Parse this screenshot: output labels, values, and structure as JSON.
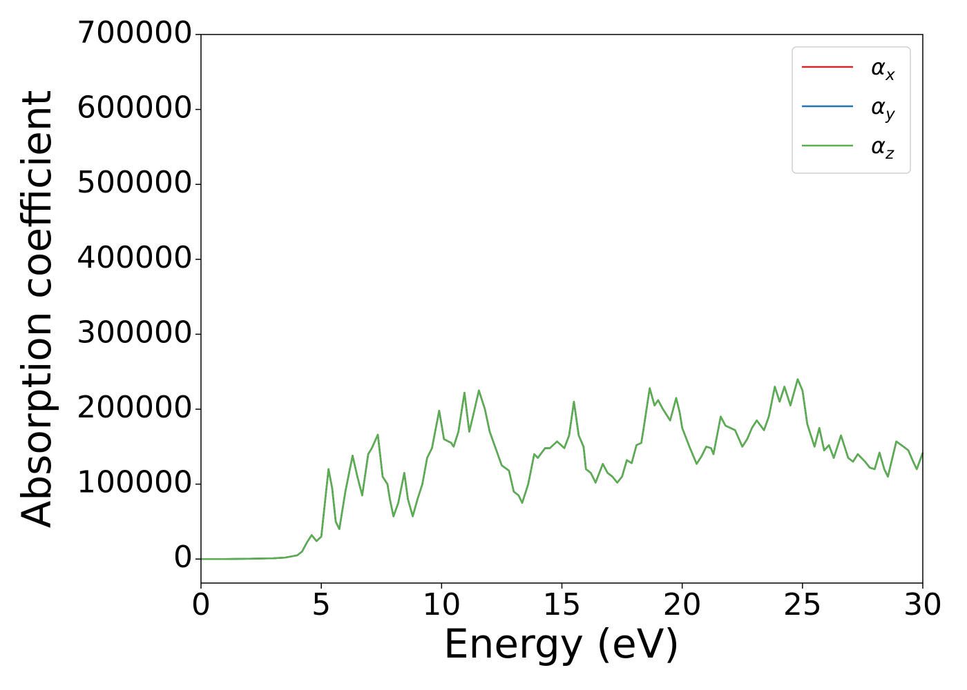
{
  "chart_data": {
    "type": "line",
    "xlabel": "Energy (eV)",
    "ylabel": "Absorption coefficient",
    "xlim": [
      0,
      30
    ],
    "ylim": [
      -32000,
      700000
    ],
    "xticks": [
      0,
      5,
      10,
      15,
      20,
      25,
      30
    ],
    "yticks": [
      0,
      100000,
      200000,
      300000,
      400000,
      500000,
      600000,
      700000
    ],
    "legend": "upper right",
    "x": [
      0,
      1,
      2,
      3,
      3.5,
      4,
      4.2,
      4.4,
      4.6,
      4.8,
      5.0,
      5.2,
      5.3,
      5.45,
      5.6,
      5.75,
      6.0,
      6.3,
      6.5,
      6.7,
      6.95,
      7.1,
      7.35,
      7.55,
      7.75,
      7.85,
      8.0,
      8.2,
      8.45,
      8.6,
      8.8,
      9.0,
      9.2,
      9.4,
      9.6,
      9.9,
      10.1,
      10.4,
      10.5,
      10.7,
      10.95,
      11.15,
      11.3,
      11.55,
      11.8,
      12.0,
      12.5,
      12.8,
      13.0,
      13.2,
      13.35,
      13.6,
      13.85,
      14.0,
      14.3,
      14.5,
      14.8,
      15.1,
      15.3,
      15.5,
      15.7,
      15.9,
      16.0,
      16.2,
      16.4,
      16.7,
      16.9,
      17.1,
      17.3,
      17.5,
      17.7,
      17.9,
      18.1,
      18.3,
      18.4,
      18.65,
      18.85,
      19.0,
      19.2,
      19.5,
      19.75,
      19.9,
      20.0,
      20.3,
      20.6,
      20.8,
      21.0,
      21.2,
      21.3,
      21.6,
      21.8,
      22.2,
      22.5,
      22.7,
      22.9,
      23.1,
      23.4,
      23.6,
      23.85,
      24.05,
      24.25,
      24.5,
      24.8,
      25.0,
      25.2,
      25.5,
      25.7,
      25.9,
      26.1,
      26.3,
      26.6,
      26.9,
      27.1,
      27.3,
      27.6,
      27.8,
      28.0,
      28.2,
      28.4,
      28.55,
      28.9,
      29.2,
      29.4,
      29.6,
      29.75,
      30
    ],
    "series": [
      {
        "name": "αx",
        "color": "#d62728",
        "values": [
          0,
          0,
          500,
          1000,
          2000,
          5000,
          10000,
          22000,
          32000,
          24000,
          30000,
          90000,
          120000,
          95000,
          50000,
          40000,
          90000,
          138000,
          110000,
          85000,
          140000,
          148000,
          166000,
          110000,
          100000,
          80000,
          57000,
          75000,
          115000,
          80000,
          57000,
          80000,
          100000,
          135000,
          148000,
          198000,
          160000,
          155000,
          150000,
          170000,
          222000,
          170000,
          190000,
          225000,
          200000,
          170000,
          125000,
          118000,
          90000,
          85000,
          75000,
          100000,
          140000,
          135000,
          148000,
          148000,
          157000,
          148000,
          165000,
          210000,
          165000,
          150000,
          120000,
          115000,
          102000,
          127000,
          115000,
          110000,
          102000,
          110000,
          132000,
          128000,
          152000,
          155000,
          175000,
          228000,
          205000,
          212000,
          200000,
          185000,
          215000,
          195000,
          175000,
          150000,
          127000,
          137000,
          150000,
          148000,
          140000,
          190000,
          178000,
          172000,
          150000,
          160000,
          175000,
          185000,
          172000,
          190000,
          230000,
          210000,
          230000,
          205000,
          240000,
          225000,
          180000,
          150000,
          175000,
          145000,
          152000,
          135000,
          165000,
          135000,
          130000,
          140000,
          130000,
          122000,
          120000,
          142000,
          120000,
          110000,
          157000,
          150000,
          145000,
          130000,
          120000,
          142000
        ]
      },
      {
        "name": "αy",
        "color": "#1f77b4",
        "values": [
          0,
          0,
          500,
          1000,
          2000,
          5000,
          10000,
          22000,
          32000,
          24000,
          30000,
          90000,
          120000,
          95000,
          50000,
          40000,
          90000,
          138000,
          110000,
          85000,
          140000,
          148000,
          166000,
          110000,
          100000,
          80000,
          57000,
          75000,
          115000,
          80000,
          57000,
          80000,
          100000,
          135000,
          148000,
          198000,
          160000,
          155000,
          150000,
          170000,
          222000,
          170000,
          190000,
          225000,
          200000,
          170000,
          125000,
          118000,
          90000,
          85000,
          75000,
          100000,
          140000,
          135000,
          148000,
          148000,
          157000,
          148000,
          165000,
          210000,
          165000,
          150000,
          120000,
          115000,
          102000,
          127000,
          115000,
          110000,
          102000,
          110000,
          132000,
          128000,
          152000,
          155000,
          175000,
          228000,
          205000,
          212000,
          200000,
          185000,
          215000,
          195000,
          175000,
          150000,
          127000,
          137000,
          150000,
          148000,
          140000,
          190000,
          178000,
          172000,
          150000,
          160000,
          175000,
          185000,
          172000,
          190000,
          230000,
          210000,
          230000,
          205000,
          240000,
          225000,
          180000,
          150000,
          175000,
          145000,
          152000,
          135000,
          165000,
          135000,
          130000,
          140000,
          130000,
          122000,
          120000,
          142000,
          120000,
          110000,
          157000,
          150000,
          145000,
          130000,
          120000,
          142000
        ]
      },
      {
        "name": "αz",
        "color": "#5aae4f",
        "values": [
          0,
          0,
          500,
          1000,
          2000,
          5000,
          10000,
          22000,
          32000,
          24000,
          30000,
          90000,
          120000,
          95000,
          50000,
          40000,
          90000,
          138000,
          110000,
          85000,
          140000,
          148000,
          166000,
          110000,
          100000,
          80000,
          57000,
          75000,
          115000,
          80000,
          57000,
          80000,
          100000,
          135000,
          148000,
          198000,
          160000,
          155000,
          150000,
          170000,
          222000,
          170000,
          190000,
          225000,
          200000,
          170000,
          125000,
          118000,
          90000,
          85000,
          75000,
          100000,
          140000,
          135000,
          148000,
          148000,
          157000,
          148000,
          165000,
          210000,
          165000,
          150000,
          120000,
          115000,
          102000,
          127000,
          115000,
          110000,
          102000,
          110000,
          132000,
          128000,
          152000,
          155000,
          175000,
          228000,
          205000,
          212000,
          200000,
          185000,
          215000,
          195000,
          175000,
          150000,
          127000,
          137000,
          150000,
          148000,
          140000,
          190000,
          178000,
          172000,
          150000,
          160000,
          175000,
          185000,
          172000,
          190000,
          230000,
          210000,
          230000,
          205000,
          240000,
          225000,
          180000,
          150000,
          175000,
          145000,
          152000,
          135000,
          165000,
          135000,
          130000,
          140000,
          130000,
          122000,
          120000,
          142000,
          120000,
          110000,
          157000,
          150000,
          145000,
          130000,
          120000,
          142000
        ]
      }
    ]
  }
}
